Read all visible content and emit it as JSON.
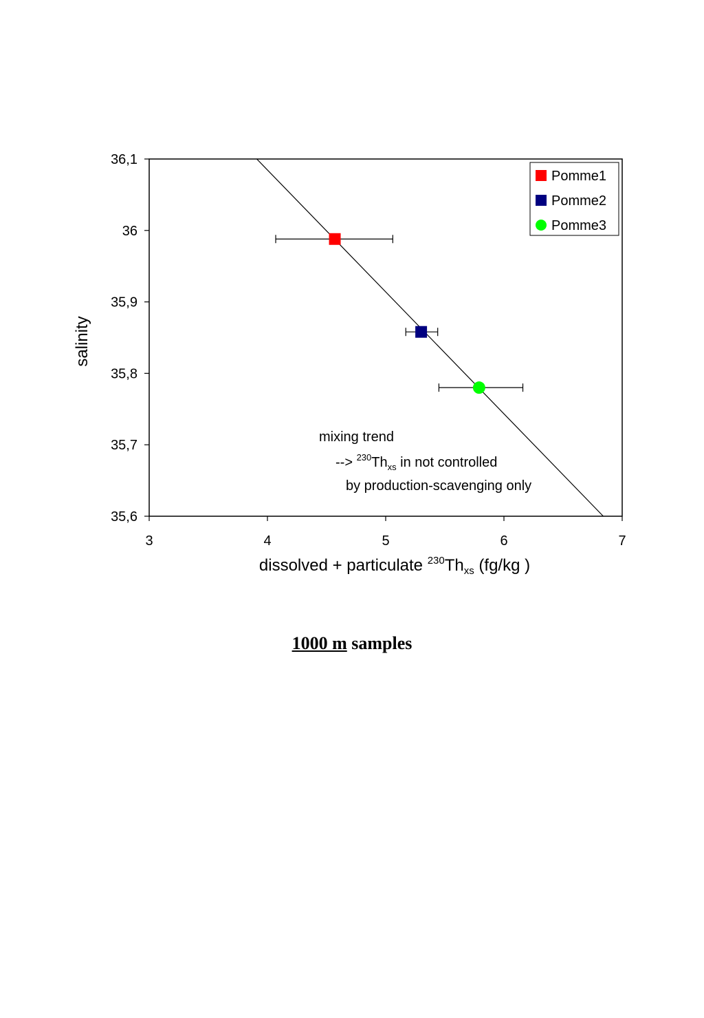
{
  "chart_data": {
    "type": "scatter",
    "xlabel": {
      "prefix": "dissolved + particulate ",
      "sup": "230",
      "base": "Th",
      "sub": "xs",
      "suffix": " (fg/kg )"
    },
    "ylabel": "salinity",
    "xlim": [
      3,
      7
    ],
    "ylim": [
      35.6,
      36.1
    ],
    "x_ticks": [
      3,
      4,
      5,
      6,
      7
    ],
    "x_tick_labels": [
      "3",
      "4",
      "5",
      "6",
      "7"
    ],
    "y_ticks": [
      35.6,
      35.7,
      35.8,
      35.9,
      36.0,
      36.1
    ],
    "y_tick_labels": [
      "35,6",
      "35,7",
      "35,8",
      "35,9",
      "36",
      "36,1"
    ],
    "grid": false,
    "legend_position": "top-right",
    "series": [
      {
        "name": "Pomme1",
        "marker": "square",
        "color": "#ff0000",
        "x": 4.57,
        "y": 35.988,
        "xerr": [
          4.07,
          5.06
        ]
      },
      {
        "name": "Pomme2",
        "marker": "square",
        "color": "#000080",
        "x": 5.3,
        "y": 35.858,
        "xerr": [
          5.17,
          5.44
        ]
      },
      {
        "name": "Pomme3",
        "marker": "circle",
        "color": "#00ff00",
        "x": 5.79,
        "y": 35.78,
        "xerr": [
          5.45,
          6.16
        ]
      }
    ],
    "trend_line": {
      "x": [
        3.91,
        6.84
      ],
      "y": [
        36.1,
        35.6
      ]
    },
    "annotation": {
      "line1": "mixing trend",
      "line2_prefix": "--> ",
      "line2_sup": "230",
      "line2_base": "Th",
      "line2_sub": "xs",
      "line2_suffix": " in not controlled",
      "line3": "by production-scavenging only"
    }
  },
  "caption": {
    "underlined": "1000 m",
    "rest": " samples"
  }
}
